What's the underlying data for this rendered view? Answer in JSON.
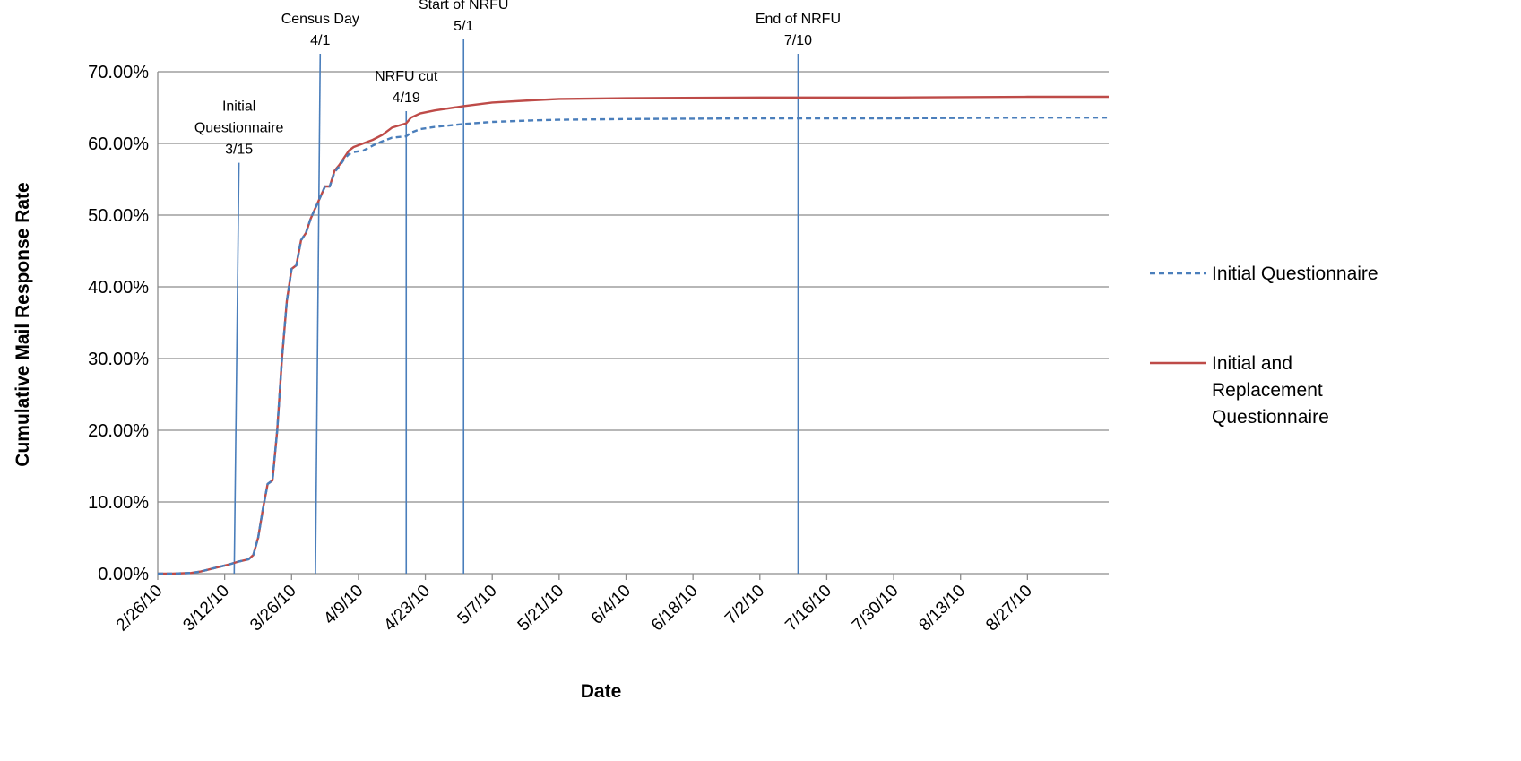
{
  "chart_data": {
    "type": "line",
    "title": "",
    "xlabel": "Date",
    "ylabel": "Cumulative Mail Response Rate",
    "ylim": [
      0,
      0.7
    ],
    "y_ticks": [
      "0.00%",
      "10.00%",
      "20.00%",
      "30.00%",
      "40.00%",
      "50.00%",
      "60.00%",
      "70.00%"
    ],
    "y_tick_values": [
      0,
      0.1,
      0.2,
      0.3,
      0.4,
      0.5,
      0.6,
      0.7
    ],
    "x_tick_labels": [
      "2/26/10",
      "3/12/10",
      "3/26/10",
      "4/9/10",
      "4/23/10",
      "5/7/10",
      "5/21/10",
      "6/4/10",
      "6/18/10",
      "7/2/10",
      "7/16/10",
      "7/30/10",
      "8/13/10",
      "8/27/10"
    ],
    "xlim": [
      "2010-02-26",
      "2010-09-13"
    ],
    "grid": "horizontal",
    "legend_position": "right",
    "series": [
      {
        "name": "Initial Questionnaire",
        "color": "#4a7ebb",
        "style": "dashed",
        "x": [
          "2010-02-26",
          "2010-03-01",
          "2010-03-05",
          "2010-03-07",
          "2010-03-10",
          "2010-03-13",
          "2010-03-15",
          "2010-03-17",
          "2010-03-18",
          "2010-03-19",
          "2010-03-20",
          "2010-03-21",
          "2010-03-22",
          "2010-03-23",
          "2010-03-24",
          "2010-03-25",
          "2010-03-26",
          "2010-03-27",
          "2010-03-28",
          "2010-03-29",
          "2010-03-30",
          "2010-03-31",
          "2010-04-01",
          "2010-04-02",
          "2010-04-03",
          "2010-04-04",
          "2010-04-05",
          "2010-04-06",
          "2010-04-07",
          "2010-04-08",
          "2010-04-10",
          "2010-04-12",
          "2010-04-14",
          "2010-04-16",
          "2010-04-19",
          "2010-04-20",
          "2010-04-22",
          "2010-04-25",
          "2010-05-01",
          "2010-05-07",
          "2010-05-15",
          "2010-05-21",
          "2010-06-04",
          "2010-07-02",
          "2010-07-30",
          "2010-08-27",
          "2010-09-13"
        ],
        "values": [
          0,
          0,
          0.001,
          0.003,
          0.008,
          0.013,
          0.017,
          0.02,
          0.026,
          0.05,
          0.09,
          0.125,
          0.13,
          0.2,
          0.3,
          0.38,
          0.425,
          0.43,
          0.465,
          0.475,
          0.495,
          0.51,
          0.525,
          0.54,
          0.54,
          0.56,
          0.568,
          0.578,
          0.585,
          0.588,
          0.59,
          0.597,
          0.603,
          0.608,
          0.61,
          0.615,
          0.62,
          0.623,
          0.627,
          0.63,
          0.632,
          0.633,
          0.634,
          0.635,
          0.635,
          0.636,
          0.636
        ]
      },
      {
        "name": "Initial and Replacement Questionnaire",
        "color": "#be4b48",
        "style": "solid",
        "x": [
          "2010-02-26",
          "2010-03-01",
          "2010-03-05",
          "2010-03-07",
          "2010-03-10",
          "2010-03-13",
          "2010-03-15",
          "2010-03-17",
          "2010-03-18",
          "2010-03-19",
          "2010-03-20",
          "2010-03-21",
          "2010-03-22",
          "2010-03-23",
          "2010-03-24",
          "2010-03-25",
          "2010-03-26",
          "2010-03-27",
          "2010-03-28",
          "2010-03-29",
          "2010-03-30",
          "2010-03-31",
          "2010-04-01",
          "2010-04-02",
          "2010-04-03",
          "2010-04-04",
          "2010-04-05",
          "2010-04-06",
          "2010-04-07",
          "2010-04-08",
          "2010-04-10",
          "2010-04-12",
          "2010-04-14",
          "2010-04-16",
          "2010-04-19",
          "2010-04-20",
          "2010-04-22",
          "2010-04-25",
          "2010-05-01",
          "2010-05-07",
          "2010-05-15",
          "2010-05-21",
          "2010-06-04",
          "2010-07-02",
          "2010-07-30",
          "2010-08-27",
          "2010-09-13"
        ],
        "values": [
          0,
          0,
          0.001,
          0.003,
          0.008,
          0.013,
          0.017,
          0.02,
          0.026,
          0.05,
          0.09,
          0.125,
          0.13,
          0.2,
          0.3,
          0.38,
          0.425,
          0.43,
          0.465,
          0.475,
          0.495,
          0.51,
          0.525,
          0.54,
          0.54,
          0.562,
          0.57,
          0.58,
          0.59,
          0.595,
          0.6,
          0.605,
          0.612,
          0.622,
          0.628,
          0.636,
          0.642,
          0.646,
          0.652,
          0.657,
          0.66,
          0.662,
          0.663,
          0.664,
          0.664,
          0.665,
          0.665
        ]
      }
    ],
    "annotations": [
      {
        "date": "2010-03-15",
        "lines": [
          "Initial",
          "Questionnaire",
          "3/15"
        ],
        "top_value": 0.573,
        "bottom_date": "2010-03-14"
      },
      {
        "date": "2010-04-01",
        "lines": [
          "Census Day",
          "4/1"
        ],
        "top_value": 0.725,
        "bottom_date": "2010-03-31"
      },
      {
        "date": "2010-04-19",
        "lines": [
          "NRFU cut",
          "4/19"
        ],
        "top_value": 0.645,
        "bottom_date": "2010-04-19"
      },
      {
        "date": "2010-05-01",
        "lines": [
          "Start of NRFU",
          "5/1"
        ],
        "top_value": 0.745,
        "bottom_date": "2010-05-01"
      },
      {
        "date": "2010-07-10",
        "lines": [
          "End of NRFU",
          "7/10"
        ],
        "top_value": 0.725,
        "bottom_date": "2010-07-10"
      }
    ]
  }
}
